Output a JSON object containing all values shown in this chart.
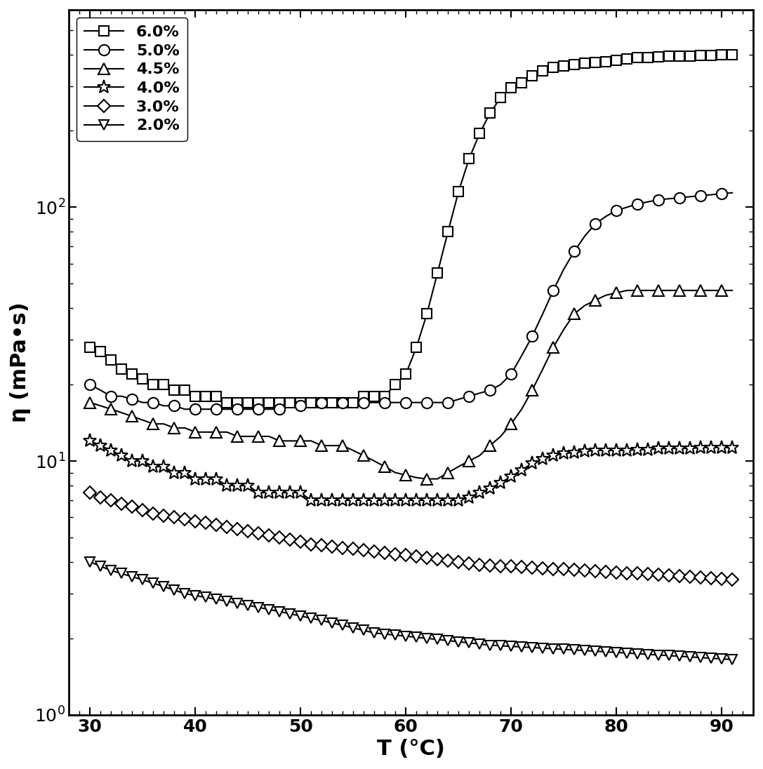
{
  "xlabel": "T (°C)",
  "ylabel": "η (mPa•s)",
  "xlim": [
    28,
    93
  ],
  "ylim_log": [
    1.0,
    600
  ],
  "xticks": [
    30,
    40,
    50,
    60,
    70,
    80,
    90
  ],
  "yticks_log": [
    1,
    10,
    100
  ],
  "ytick_labels": [
    "10$^0$",
    "10$^1$",
    "10$^2$"
  ],
  "series": [
    {
      "label": "6.0%",
      "marker": "s",
      "T": [
        30,
        31,
        32,
        33,
        34,
        35,
        36,
        37,
        38,
        39,
        40,
        41,
        42,
        43,
        44,
        45,
        46,
        47,
        48,
        49,
        50,
        51,
        52,
        53,
        54,
        55,
        56,
        57,
        58,
        59,
        60,
        61,
        62,
        63,
        64,
        65,
        66,
        67,
        68,
        69,
        70,
        71,
        72,
        73,
        74,
        75,
        76,
        77,
        78,
        79,
        80,
        81,
        82,
        83,
        84,
        85,
        86,
        87,
        88,
        89,
        90,
        91
      ],
      "eta": [
        28,
        27,
        25,
        23,
        22,
        21,
        20,
        20,
        19,
        19,
        18,
        18,
        18,
        17,
        17,
        17,
        17,
        17,
        17,
        17,
        17,
        17,
        17,
        17,
        17,
        17,
        18,
        18,
        18,
        20,
        22,
        28,
        38,
        55,
        80,
        115,
        155,
        195,
        235,
        270,
        295,
        310,
        330,
        345,
        355,
        360,
        365,
        370,
        373,
        375,
        380,
        385,
        388,
        390,
        392,
        393,
        394,
        395,
        396,
        397,
        398,
        400
      ]
    },
    {
      "label": "5.0%",
      "marker": "o",
      "T": [
        60,
        61,
        62,
        63,
        64,
        65,
        66,
        67,
        68,
        69,
        70,
        71,
        72,
        73,
        74,
        75,
        76,
        77,
        78,
        79,
        80,
        81,
        82,
        83,
        84,
        85,
        86,
        87,
        88,
        89,
        90,
        91
      ],
      "eta": [
        17,
        17,
        17,
        17,
        17,
        17.5,
        18,
        18.5,
        19,
        20,
        22,
        26,
        31,
        38,
        47,
        57,
        67,
        77,
        86,
        92,
        97,
        100,
        103,
        105,
        107,
        108,
        109,
        110,
        111,
        112,
        113,
        114
      ],
      "T_low": [
        30,
        31,
        32,
        33,
        34,
        35,
        36,
        37,
        38,
        39,
        40,
        41,
        42,
        43,
        44,
        45,
        46,
        47,
        48,
        49,
        50,
        51,
        52,
        53,
        54,
        55,
        56,
        57,
        58,
        59
      ],
      "eta_low": [
        20,
        19,
        18,
        18,
        17.5,
        17,
        17,
        16.5,
        16.5,
        16,
        16,
        16,
        16,
        16,
        16,
        16,
        16,
        16,
        16,
        16.5,
        16.5,
        16.5,
        17,
        17,
        17,
        17,
        17,
        17,
        17,
        17
      ]
    },
    {
      "label": "4.5%",
      "marker": "^",
      "T": [
        63,
        64,
        65,
        66,
        67,
        68,
        69,
        70,
        71,
        72,
        73,
        74,
        75,
        76,
        77,
        78,
        79,
        80,
        81,
        82,
        83,
        84,
        85,
        86,
        87,
        88,
        89,
        90,
        91
      ],
      "eta": [
        8.5,
        9,
        9.5,
        10,
        10.5,
        11.5,
        12.5,
        14,
        16,
        19,
        23,
        28,
        33,
        38,
        41,
        43,
        45,
        46,
        47,
        47,
        47,
        47,
        47,
        47,
        47,
        47,
        47,
        47,
        47
      ],
      "T_low": [
        30,
        31,
        32,
        33,
        34,
        35,
        36,
        37,
        38,
        39,
        40,
        41,
        42,
        43,
        44,
        45,
        46,
        47,
        48,
        49,
        50,
        51,
        52,
        53,
        54,
        55,
        56,
        57,
        58,
        59,
        60,
        61,
        62
      ],
      "eta_low": [
        17,
        16.5,
        16,
        15.5,
        15,
        14.5,
        14,
        14,
        13.5,
        13.5,
        13,
        13,
        13,
        13,
        12.5,
        12.5,
        12.5,
        12.5,
        12,
        12,
        12,
        12,
        11.5,
        11.5,
        11.5,
        11,
        10.5,
        10,
        9.5,
        9,
        8.8,
        8.6,
        8.5
      ]
    },
    {
      "label": "4.0%",
      "marker": "*",
      "T": [
        30,
        31,
        32,
        33,
        34,
        35,
        36,
        37,
        38,
        39,
        40,
        41,
        42,
        43,
        44,
        45,
        46,
        47,
        48,
        49,
        50,
        51,
        52,
        53,
        54,
        55,
        56,
        57,
        58,
        59,
        60,
        61,
        62,
        63,
        64,
        65,
        66,
        67,
        68,
        69,
        70,
        71,
        72,
        73,
        74,
        75,
        76,
        77,
        78,
        79,
        80,
        81,
        82,
        83,
        84,
        85,
        86,
        87,
        88,
        89,
        90,
        91
      ],
      "eta": [
        12,
        11.5,
        11,
        10.5,
        10,
        10,
        9.5,
        9.5,
        9,
        9,
        8.5,
        8.5,
        8.5,
        8,
        8,
        8,
        7.5,
        7.5,
        7.5,
        7.5,
        7.5,
        7,
        7,
        7,
        7,
        7,
        7,
        7,
        7,
        7,
        7,
        7,
        7,
        7,
        7,
        7,
        7.2,
        7.5,
        7.8,
        8.2,
        8.7,
        9.2,
        9.8,
        10.2,
        10.5,
        10.7,
        10.8,
        10.9,
        11,
        11,
        11,
        11,
        11.1,
        11.1,
        11.2,
        11.2,
        11.2,
        11.2,
        11.3,
        11.3,
        11.3,
        11.3
      ]
    },
    {
      "label": "3.0%",
      "marker": "D",
      "T": [
        30,
        31,
        32,
        33,
        34,
        35,
        36,
        37,
        38,
        39,
        40,
        41,
        42,
        43,
        44,
        45,
        46,
        47,
        48,
        49,
        50,
        51,
        52,
        53,
        54,
        55,
        56,
        57,
        58,
        59,
        60,
        61,
        62,
        63,
        64,
        65,
        66,
        67,
        68,
        69,
        70,
        71,
        72,
        73,
        74,
        75,
        76,
        77,
        78,
        79,
        80,
        81,
        82,
        83,
        84,
        85,
        86,
        87,
        88,
        89,
        90,
        91
      ],
      "eta": [
        7.5,
        7.2,
        7,
        6.8,
        6.6,
        6.4,
        6.2,
        6.1,
        6,
        5.9,
        5.8,
        5.7,
        5.6,
        5.5,
        5.4,
        5.3,
        5.2,
        5.1,
        5.0,
        4.9,
        4.8,
        4.7,
        4.65,
        4.6,
        4.55,
        4.5,
        4.45,
        4.4,
        4.35,
        4.3,
        4.25,
        4.2,
        4.15,
        4.1,
        4.05,
        4.0,
        3.95,
        3.9,
        3.88,
        3.86,
        3.84,
        3.82,
        3.8,
        3.78,
        3.76,
        3.74,
        3.72,
        3.7,
        3.68,
        3.66,
        3.64,
        3.62,
        3.6,
        3.58,
        3.56,
        3.54,
        3.52,
        3.5,
        3.48,
        3.46,
        3.44,
        3.42
      ]
    },
    {
      "label": "2.0%",
      "marker": "v",
      "T": [
        30,
        31,
        32,
        33,
        34,
        35,
        36,
        37,
        38,
        39,
        40,
        41,
        42,
        43,
        44,
        45,
        46,
        47,
        48,
        49,
        50,
        51,
        52,
        53,
        54,
        55,
        56,
        57,
        58,
        59,
        60,
        61,
        62,
        63,
        64,
        65,
        66,
        67,
        68,
        69,
        70,
        71,
        72,
        73,
        74,
        75,
        76,
        77,
        78,
        79,
        80,
        81,
        82,
        83,
        84,
        85,
        86,
        87,
        88,
        89,
        90,
        91
      ],
      "eta": [
        4.0,
        3.85,
        3.7,
        3.6,
        3.5,
        3.4,
        3.3,
        3.2,
        3.1,
        3.0,
        2.95,
        2.9,
        2.85,
        2.8,
        2.75,
        2.7,
        2.65,
        2.6,
        2.55,
        2.5,
        2.45,
        2.4,
        2.35,
        2.3,
        2.25,
        2.2,
        2.15,
        2.1,
        2.08,
        2.06,
        2.04,
        2.02,
        2.0,
        1.98,
        1.96,
        1.94,
        1.92,
        1.9,
        1.88,
        1.87,
        1.86,
        1.85,
        1.84,
        1.83,
        1.82,
        1.81,
        1.8,
        1.79,
        1.78,
        1.77,
        1.76,
        1.75,
        1.74,
        1.73,
        1.72,
        1.71,
        1.7,
        1.69,
        1.68,
        1.67,
        1.66,
        1.65
      ]
    }
  ],
  "line_color": "black",
  "marker_size": 8,
  "marker_facecolor": "white",
  "linewidth": 1.5,
  "legend_fontsize": 16,
  "axis_label_fontsize": 22,
  "tick_fontsize": 18
}
